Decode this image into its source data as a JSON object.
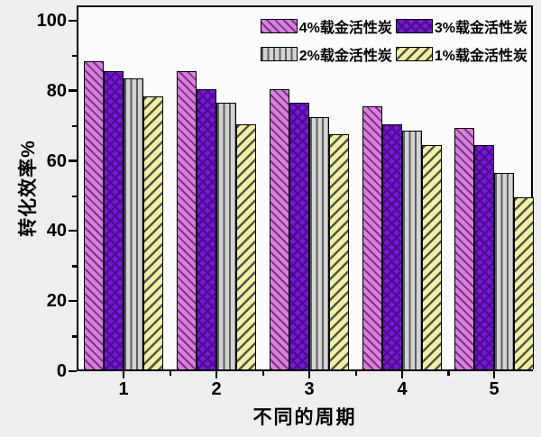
{
  "chart_data": {
    "type": "bar",
    "title": "",
    "xlabel": "不同的周期",
    "ylabel": "转化效率%",
    "categories": [
      "1",
      "2",
      "3",
      "4",
      "5"
    ],
    "series": [
      {
        "name": "4%载金活性炭",
        "values": [
          88,
          85,
          80,
          75,
          69
        ],
        "pattern": "diagonal-down",
        "color": "#d583d6",
        "hatch_color": "#822f92"
      },
      {
        "name": "3%载金活性炭",
        "values": [
          85,
          80,
          76,
          70,
          64
        ],
        "pattern": "crosshatch",
        "color": "#7b16d9",
        "hatch_color": "#4c0e90"
      },
      {
        "name": "2%载金活性炭",
        "values": [
          83,
          76,
          72,
          68,
          56
        ],
        "pattern": "vertical",
        "color": "#d3d3d3",
        "hatch_color": "#5f5f5f"
      },
      {
        "name": "1%载金活性炭",
        "values": [
          78,
          70,
          67,
          64,
          49
        ],
        "pattern": "diagonal-up",
        "color": "#eff2a5",
        "hatch_color": "#55544a"
      }
    ],
    "y_ticks": [
      0,
      20,
      40,
      60,
      80,
      100
    ],
    "y_minor_ticks": [
      10,
      30,
      50,
      70,
      90
    ],
    "ylim": [
      0,
      104
    ],
    "grid": false,
    "legend_position": "top-right",
    "axis_color": "#000000",
    "plot_background": "#fcfcfc"
  }
}
